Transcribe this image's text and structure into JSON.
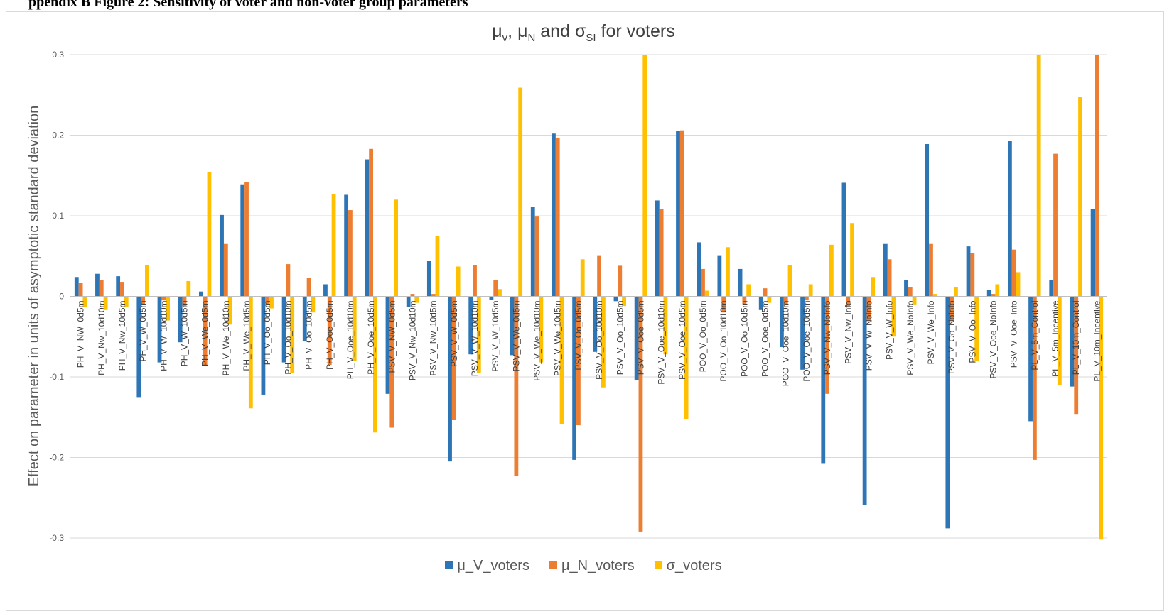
{
  "page_header": "ppendix B Figure 2: Sensitivity of voter and non-voter group parameters",
  "chart_data": {
    "type": "bar",
    "title_parts": {
      "mu": "μ",
      "v_sub": "v",
      "sep1": ", ",
      "mu2": "μ",
      "n_sub": "N",
      "and": " and ",
      "sigma": "σ",
      "si_sub": "SI",
      "tail": " for voters"
    },
    "ylabel": "Effect on parameter in units of asymptotic standard deviation",
    "ylim": [
      -0.3,
      0.3
    ],
    "yticks": [
      0.3,
      0.2,
      0.1,
      0,
      -0.1,
      -0.2,
      -0.3
    ],
    "ytick_labels": [
      "0.3",
      "0.2",
      "0.1",
      "0",
      "-0.1",
      "-0.2",
      "-0.3"
    ],
    "grid": true,
    "legend_position": "bottom",
    "categories": [
      "PH_V_NW_0d5m",
      "PH_V_Nw_10d10m",
      "PH_V_Nw_10d5m",
      "PH_V_W_0d5m",
      "PH_V_W_10d10m",
      "PH_V_W_10d5m",
      "PH_V_We_0d5m",
      "PH_V_We_10d10m",
      "PH_V_We_10d5m",
      "PH_V_Oo_0d5m",
      "PH_V_Oo_10d10m",
      "PH_V_Oo_10d5m",
      "PH_V_Ooe_0d5m",
      "PH_V_Ooe_10d10m",
      "PH_V_Ooe_10d5m",
      "PSV_V_NW_0d5m",
      "PSV_V_Nw_10d10m",
      "PSV_V_Nw_10d5m",
      "PSV_V_W_0d5m",
      "PSV_V_W_10d10m",
      "PSV_V_W_10d5m",
      "PSV_V_We_0d5m",
      "PSV_V_We_10d10m",
      "PSV_V_We_10d5m",
      "PSV_V_Oo_0d5m",
      "PSV_V_Oo_10d10m",
      "PSV_V_Oo_10d5m",
      "PSV_V_Ooe_0d5m",
      "PSV_V_Ooe_10d10m",
      "PSV_V_Ooe_10d5m",
      "POO_V_Oo_0d5m",
      "POO_V_Oo_10d10m",
      "POO_V_Oo_10d5m",
      "POO_V_Ooe_0d5m",
      "POO_V_Ooe_10d10m",
      "POO_V_Ooe_10d5m",
      "PSV_V_Nw_NoInfo",
      "PSV_V_Nw_Info",
      "PSV_V_W_NoInfo",
      "PSV_V_W_Info",
      "PSV_V_We_NoInfo",
      "PSV_V_We_Info",
      "PSV_V_Oo_NoInfo",
      "PSV_V_Oo_Info",
      "PSV_V_Ooe_NoInfo",
      "PSV_V_Ooe_Info",
      "PL_V_5m_Control",
      "PL_V_5m_Incentive",
      "PL_V_10m_Control",
      "PL_V_10m_Incentive"
    ],
    "series": [
      {
        "name": "μ_V_voters",
        "color": "#2e75b6",
        "values": [
          0.024,
          0.028,
          0.025,
          -0.125,
          -0.082,
          -0.057,
          0.006,
          0.101,
          0.139,
          -0.122,
          -0.082,
          -0.056,
          0.015,
          0.126,
          0.17,
          -0.121,
          -0.013,
          0.044,
          -0.205,
          -0.072,
          -0.004,
          -0.073,
          0.111,
          0.202,
          -0.203,
          -0.069,
          -0.006,
          -0.104,
          0.119,
          0.205,
          0.067,
          0.051,
          0.034,
          -0.017,
          -0.063,
          -0.091,
          -0.207,
          0.141,
          -0.259,
          0.065,
          0.02,
          0.189,
          -0.288,
          0.062,
          0.008,
          0.193,
          -0.155,
          0.02,
          -0.112,
          0.108
        ]
      },
      {
        "name": "μ_N_voters",
        "color": "#ed7d31",
        "values": [
          0.017,
          0.02,
          0.018,
          -0.01,
          -0.005,
          -0.012,
          -0.085,
          0.065,
          0.142,
          -0.01,
          0.04,
          0.023,
          -0.085,
          0.107,
          0.183,
          -0.163,
          0.003,
          0.003,
          -0.153,
          0.039,
          0.02,
          -0.223,
          0.099,
          0.197,
          -0.16,
          0.051,
          0.038,
          -0.292,
          0.108,
          0.206,
          0.034,
          -0.02,
          -0.01,
          0.01,
          -0.01,
          -0.005,
          -0.121,
          -0.012,
          -0.03,
          0.046,
          0.011,
          0.065,
          -0.03,
          0.054,
          0.003,
          0.058,
          -0.203,
          0.177,
          -0.146,
          0.3
        ]
      },
      {
        "name": "σ_voters",
        "color": "#ffc000",
        "values": [
          -0.013,
          -0.017,
          -0.013,
          0.039,
          -0.03,
          0.019,
          0.154,
          -0.035,
          -0.139,
          -0.015,
          -0.095,
          -0.02,
          0.127,
          -0.08,
          -0.169,
          0.12,
          -0.008,
          0.075,
          0.037,
          -0.095,
          0.009,
          0.259,
          -0.082,
          -0.159,
          0.046,
          -0.113,
          -0.012,
          0.3,
          -0.072,
          -0.152,
          0.007,
          0.061,
          0.015,
          -0.008,
          0.039,
          0.015,
          0.064,
          0.091,
          0.024,
          -0.05,
          -0.01,
          0.003,
          0.011,
          -0.08,
          0.015,
          0.03,
          0.3,
          -0.11,
          0.248,
          -0.302
        ]
      }
    ]
  }
}
